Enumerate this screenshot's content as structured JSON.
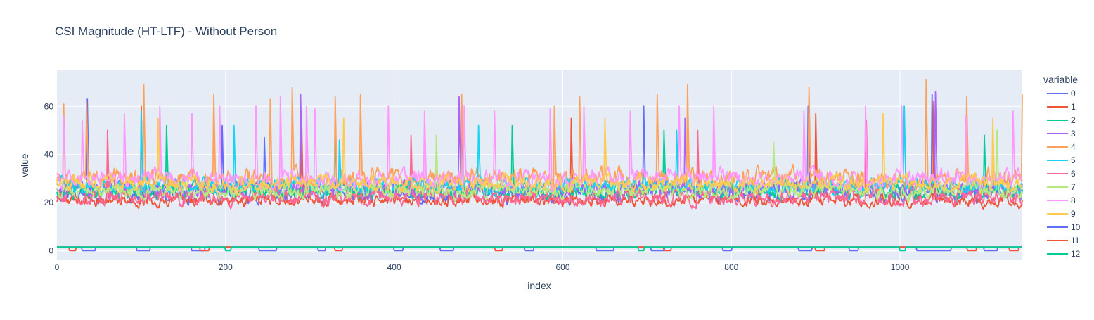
{
  "chart_data": {
    "type": "line",
    "title": "CSI Magnitude (HT-LTF) - Without Person",
    "xlabel": "index",
    "ylabel": "value",
    "xlim": [
      0,
      1145
    ],
    "ylim": [
      -4,
      75
    ],
    "xticks": [
      0,
      200,
      400,
      600,
      800,
      1000
    ],
    "yticks": [
      0,
      20,
      40,
      60
    ],
    "grid": true,
    "legend_title": "variable",
    "legend_position": "right",
    "series": [
      {
        "name": "0",
        "color": "#636efa",
        "base": 24,
        "amp": 6,
        "spikes": [
          [
            36,
            63
          ],
          [
            196,
            52
          ],
          [
            246,
            47
          ],
          [
            480,
            63
          ],
          [
            696,
            60
          ],
          [
            891,
            60
          ],
          [
            1038,
            65
          ]
        ]
      },
      {
        "name": "1",
        "color": "#EF553B",
        "base": 21,
        "amp": 4,
        "spikes": [
          [
            100,
            60
          ],
          [
            290,
            58
          ],
          [
            610,
            55
          ],
          [
            900,
            57
          ],
          [
            1040,
            62
          ]
        ]
      },
      {
        "name": "2",
        "color": "#00cc96",
        "base": 25,
        "amp": 5,
        "spikes": [
          [
            130,
            52
          ],
          [
            330,
            50
          ],
          [
            540,
            52
          ],
          [
            720,
            50
          ],
          [
            1100,
            48
          ]
        ]
      },
      {
        "name": "3",
        "color": "#ab63fa",
        "base": 26,
        "amp": 5,
        "spikes": [
          [
            289,
            65
          ],
          [
            477,
            64
          ],
          [
            745,
            55
          ],
          [
            892,
            62
          ],
          [
            1042,
            66
          ]
        ]
      },
      {
        "name": "4",
        "color": "#FFA15A",
        "base": 30,
        "amp": 7,
        "spikes": [
          [
            8,
            61
          ],
          [
            35,
            62
          ],
          [
            103,
            69
          ],
          [
            186,
            65
          ],
          [
            253,
            63
          ],
          [
            279,
            68
          ],
          [
            330,
            64
          ],
          [
            360,
            65
          ],
          [
            480,
            65
          ],
          [
            590,
            60
          ],
          [
            620,
            64
          ],
          [
            712,
            65
          ],
          [
            748,
            69
          ],
          [
            892,
            68
          ],
          [
            1031,
            71
          ],
          [
            1079,
            64
          ],
          [
            1145,
            65
          ]
        ]
      },
      {
        "name": "5",
        "color": "#19d3f3",
        "base": 27,
        "amp": 5,
        "spikes": [
          [
            100,
            58
          ],
          [
            210,
            52
          ],
          [
            335,
            46
          ],
          [
            500,
            52
          ],
          [
            735,
            50
          ],
          [
            1005,
            60
          ]
        ]
      },
      {
        "name": "6",
        "color": "#FF6692",
        "base": 22,
        "amp": 5,
        "spikes": [
          [
            60,
            50
          ],
          [
            420,
            48
          ],
          [
            760,
            50
          ],
          [
            960,
            54
          ]
        ]
      },
      {
        "name": "7",
        "color": "#B6E880",
        "base": 25,
        "amp": 5,
        "spikes": [
          [
            450,
            48
          ],
          [
            850,
            45
          ],
          [
            1115,
            50
          ]
        ]
      },
      {
        "name": "8",
        "color": "#FF97FF",
        "base": 30,
        "amp": 6,
        "spikes": [
          [
            8,
            56
          ],
          [
            30,
            54
          ],
          [
            80,
            57
          ],
          [
            122,
            60
          ],
          [
            160,
            57
          ],
          [
            193,
            60
          ],
          [
            236,
            60
          ],
          [
            265,
            64
          ],
          [
            296,
            60
          ],
          [
            306,
            59
          ],
          [
            393,
            60
          ],
          [
            436,
            58
          ],
          [
            483,
            60
          ],
          [
            519,
            58
          ],
          [
            585,
            59
          ],
          [
            625,
            60
          ],
          [
            680,
            58
          ],
          [
            738,
            60
          ],
          [
            779,
            60
          ],
          [
            886,
            58
          ],
          [
            959,
            60
          ],
          [
            1002,
            60
          ],
          [
            1078,
            56
          ],
          [
            1134,
            58
          ]
        ]
      },
      {
        "name": "9",
        "color": "#FECB52",
        "base": 28,
        "amp": 5,
        "spikes": [
          [
            120,
            55
          ],
          [
            340,
            55
          ],
          [
            650,
            55
          ],
          [
            980,
            57
          ],
          [
            1110,
            55
          ]
        ]
      },
      {
        "name": "10",
        "color": "#636efa",
        "kind": "flat",
        "base": 1.5,
        "dips": [
          [
            30,
            45
          ],
          [
            95,
            110
          ],
          [
            160,
            175
          ],
          [
            240,
            260
          ],
          [
            310,
            318
          ],
          [
            400,
            410
          ],
          [
            455,
            470
          ],
          [
            555,
            565
          ],
          [
            640,
            660
          ],
          [
            705,
            720
          ],
          [
            790,
            800
          ],
          [
            880,
            895
          ],
          [
            940,
            950
          ],
          [
            1020,
            1060
          ],
          [
            1100,
            1115
          ]
        ]
      },
      {
        "name": "11",
        "color": "#EF553B",
        "kind": "flat",
        "base": 1.5,
        "dips": [
          [
            15,
            22
          ],
          [
            170,
            180
          ],
          [
            330,
            338
          ],
          [
            520,
            528
          ],
          [
            720,
            728
          ],
          [
            900,
            910
          ],
          [
            1080,
            1090
          ],
          [
            1130,
            1140
          ]
        ]
      },
      {
        "name": "12",
        "color": "#00cc96",
        "kind": "flat",
        "base": 1.5,
        "dips": [
          [
            200,
            206
          ],
          [
            690,
            696
          ],
          [
            1000,
            1006
          ]
        ]
      }
    ]
  }
}
